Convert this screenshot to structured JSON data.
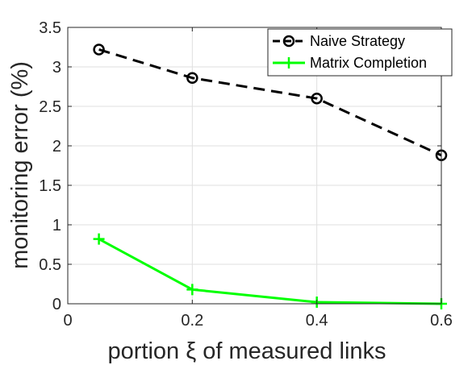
{
  "chart_data": {
    "type": "line",
    "xlabel": "portion ξ of measured links",
    "ylabel": "monitoring error (%)",
    "xlim": [
      0,
      0.6
    ],
    "ylim": [
      0,
      3.5
    ],
    "x_ticks": [
      0,
      0.2,
      0.4,
      0.6
    ],
    "x_tick_labels": [
      "0",
      "0.2",
      "0.4",
      "0.6"
    ],
    "y_ticks": [
      0,
      0.5,
      1,
      1.5,
      2,
      2.5,
      3,
      3.5
    ],
    "y_tick_labels": [
      "0",
      "0.5",
      "1",
      "1.5",
      "2",
      "2.5",
      "3",
      "3.5"
    ],
    "grid": true,
    "legend_position": "top-right",
    "series": [
      {
        "name": "Naive Strategy",
        "x": [
          0.05,
          0.2,
          0.4,
          0.6
        ],
        "y": [
          3.22,
          2.86,
          2.6,
          1.88
        ],
        "color": "#000000",
        "line_style": "dashed",
        "marker": "circle"
      },
      {
        "name": "Matrix Completion",
        "x": [
          0.05,
          0.2,
          0.4,
          0.6
        ],
        "y": [
          0.82,
          0.18,
          0.02,
          0.0
        ],
        "color": "#00ff00",
        "line_style": "solid",
        "marker": "plus"
      }
    ]
  }
}
